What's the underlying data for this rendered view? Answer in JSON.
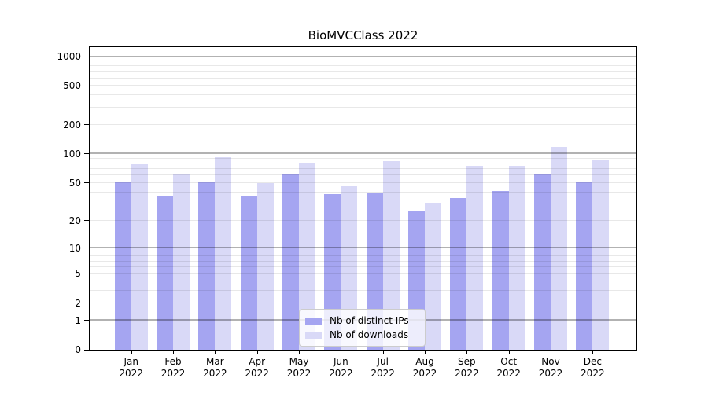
{
  "chart_data": {
    "type": "bar",
    "title": "BioMVCClass 2022",
    "year": "2022",
    "categories": [
      "Jan",
      "Feb",
      "Mar",
      "Apr",
      "May",
      "Jun",
      "Jul",
      "Aug",
      "Sep",
      "Oct",
      "Nov",
      "Dec"
    ],
    "series": [
      {
        "name": "Nb of distinct IPs",
        "color": "#a5a5f1",
        "values": [
          52,
          37,
          51,
          36,
          62,
          38,
          40,
          25,
          35,
          41,
          61,
          51
        ]
      },
      {
        "name": "Nb of downloads",
        "color": "#d9d9f7",
        "values": [
          78,
          61,
          92,
          50,
          81,
          46,
          84,
          31,
          76,
          76,
          118,
          86
        ]
      }
    ],
    "yscale": "log10(value+1)",
    "ylim": [
      0,
      1300
    ],
    "ytick_labels": [
      1000,
      500,
      200,
      100,
      50,
      20,
      10,
      5,
      2,
      1,
      0
    ],
    "major_gridlines": [
      1,
      10,
      100,
      1000
    ],
    "minor_gridlines": [
      2,
      3,
      4,
      5,
      6,
      7,
      8,
      9,
      20,
      30,
      40,
      50,
      60,
      70,
      80,
      90,
      200,
      300,
      400,
      500,
      600,
      700,
      800,
      900
    ],
    "grid": true,
    "legend_position": "lower-center",
    "colors": {
      "background": "#ffffff",
      "axis": "#000000",
      "major_grid_over_white": "#b3b3b3",
      "minor_grid_over_white": "#e8e8e8"
    }
  }
}
